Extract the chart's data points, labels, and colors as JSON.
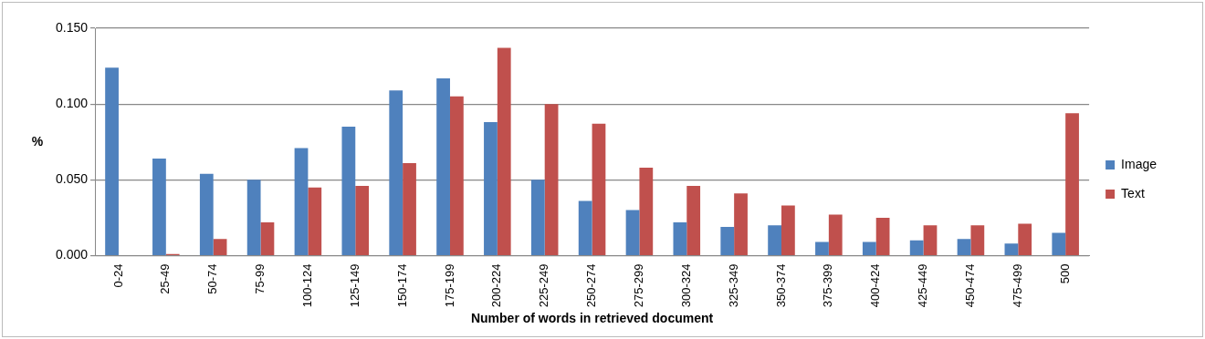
{
  "chart_data": {
    "type": "bar",
    "xlabel": "Number of words in retrieved document",
    "ylabel": "%",
    "categories": [
      "0-24",
      "25-49",
      "50-74",
      "75-99",
      "100-124",
      "125-149",
      "150-174",
      "175-199",
      "200-224",
      "225-249",
      "250-274",
      "275-299",
      "300-324",
      "325-349",
      "350-374",
      "375-399",
      "400-424",
      "425-449",
      "450-474",
      "475-499",
      "500"
    ],
    "series": [
      {
        "name": "Image",
        "color": "#4f81bd",
        "values": [
          0.124,
          0.064,
          0.054,
          0.05,
          0.071,
          0.085,
          0.109,
          0.117,
          0.088,
          0.05,
          0.036,
          0.03,
          0.022,
          0.019,
          0.02,
          0.009,
          0.009,
          0.01,
          0.011,
          0.008,
          0.015
        ]
      },
      {
        "name": "Text",
        "color": "#c0504d",
        "values": [
          0,
          0.001,
          0.011,
          0.022,
          0.045,
          0.046,
          0.061,
          0.105,
          0.137,
          0.1,
          0.087,
          0.058,
          0.046,
          0.041,
          0.033,
          0.027,
          0.025,
          0.02,
          0.02,
          0.021,
          0.094
        ]
      }
    ],
    "ylim": [
      0,
      0.15
    ],
    "yticks": [
      {
        "value": 0,
        "label": "0.000"
      },
      {
        "value": 0.05,
        "label": "0.050"
      },
      {
        "value": 0.1,
        "label": "0.100"
      },
      {
        "value": 0.15,
        "label": "0.150"
      }
    ],
    "grid": "y",
    "legend": "right"
  }
}
